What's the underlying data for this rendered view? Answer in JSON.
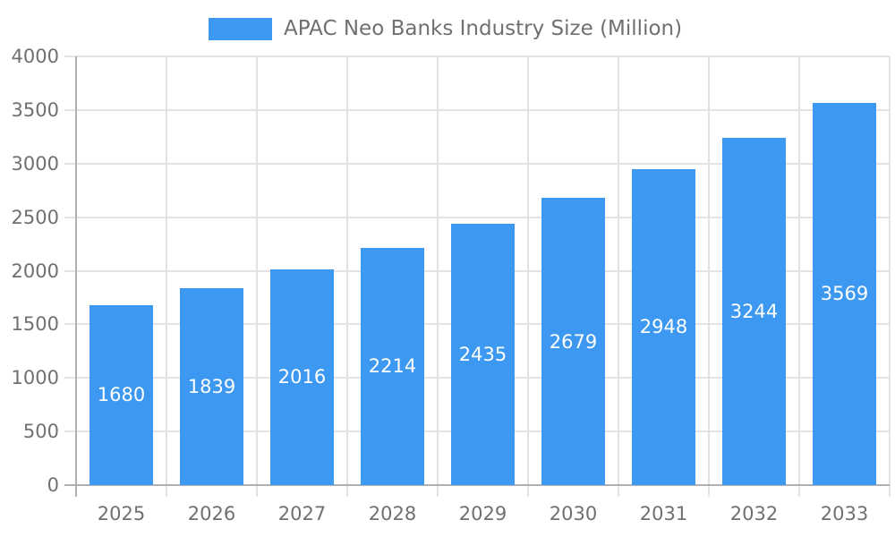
{
  "chart_data": {
    "type": "bar",
    "title": "APAC Neo Banks Industry Size (Million)",
    "legend": {
      "position": "top",
      "label": "APAC Neo Banks Industry Size (Million)"
    },
    "categories": [
      "2025",
      "2026",
      "2027",
      "2028",
      "2029",
      "2030",
      "2031",
      "2032",
      "2033"
    ],
    "series": [
      {
        "name": "APAC Neo Banks Industry Size (Million)",
        "values": [
          1680,
          1839,
          2016,
          2214,
          2435,
          2679,
          2948,
          3244,
          3569
        ]
      }
    ],
    "value_labels_shown": true,
    "xlabel": "",
    "ylabel": "",
    "ylim": [
      0,
      4000
    ],
    "yticks": [
      0,
      500,
      1000,
      1500,
      2000,
      2500,
      3000,
      3500,
      4000
    ],
    "grid": true,
    "colors": {
      "bar": "#3C98F0",
      "bar_value_label": "#ffffff",
      "axis_text": "#707070",
      "grid_line": "#e3e3e3",
      "axis_line": "#b0b0b0",
      "background": "#ffffff"
    }
  }
}
